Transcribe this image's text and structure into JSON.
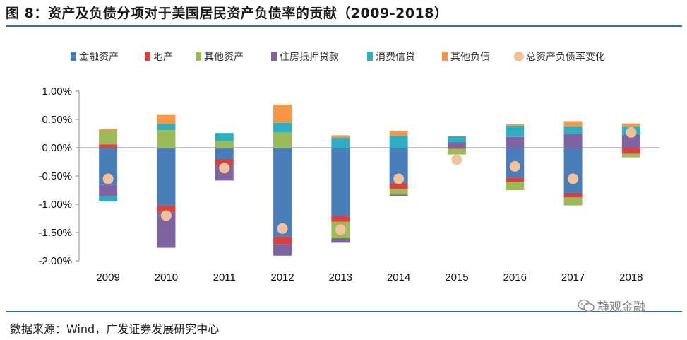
{
  "figure": {
    "title": "图 8：资产及负债分项对于美国居民资产负债率的贡献（2009-2018）",
    "source": "数据来源：Wind，广发证券发展研究中心",
    "watermark": "静观金融",
    "watermark_icon": "wechat-icon"
  },
  "chart_data": {
    "type": "bar",
    "stacked": true,
    "categories": [
      "2009",
      "2010",
      "2011",
      "2012",
      "2013",
      "2014",
      "2015",
      "2016",
      "2017",
      "2018"
    ],
    "ylim": [
      -0.02,
      0.01
    ],
    "yticks": [
      0.01,
      0.005,
      0.0,
      -0.005,
      -0.01,
      -0.015,
      -0.02
    ],
    "ytick_labels": [
      "1.00%",
      "0.50%",
      "0.00%",
      "-0.50%",
      "-1.00%",
      "-1.50%",
      "-2.00%"
    ],
    "legend_position": "top",
    "series": [
      {
        "name": "金融资产",
        "color": "#4a7ebb",
        "values": [
          -0.0066,
          -0.0102,
          -0.002,
          -0.0157,
          -0.0121,
          -0.0063,
          0.0,
          -0.0053,
          -0.008,
          0.0
        ]
      },
      {
        "name": "地产",
        "color": "#d9413f",
        "values": [
          0.0006,
          -0.0012,
          -0.001,
          -0.0014,
          -0.001,
          -0.001,
          -0.0002,
          -0.0007,
          -0.0008,
          -0.0011
        ]
      },
      {
        "name": "其他资产",
        "color": "#9bbb59",
        "values": [
          0.0024,
          0.0031,
          0.0012,
          0.0027,
          -0.0029,
          -0.001,
          -0.001,
          -0.0015,
          -0.0014,
          -0.0006
        ]
      },
      {
        "name": "住房抵押贷款",
        "color": "#8064a2",
        "values": [
          -0.0019,
          -0.0063,
          -0.0028,
          -0.002,
          -0.0008,
          -0.0002,
          0.001,
          0.0019,
          0.0024,
          0.0023
        ]
      },
      {
        "name": "消费信贷",
        "color": "#2eaec2",
        "values": [
          -0.001,
          0.0011,
          0.0014,
          0.0017,
          0.0018,
          0.0021,
          0.001,
          0.002,
          0.0014,
          0.0015
        ]
      },
      {
        "name": "其他负债",
        "color": "#f79646",
        "values": [
          0.0003,
          0.0017,
          0.0,
          0.0032,
          0.0004,
          0.0009,
          0.0,
          0.0003,
          0.0009,
          0.0005
        ]
      }
    ],
    "markers": {
      "name": "总资产负债率变化",
      "color": "#f4c29a",
      "values": [
        -0.0055,
        -0.012,
        -0.0036,
        -0.0143,
        -0.0145,
        -0.0055,
        -0.0021,
        -0.0033,
        -0.0055,
        0.0027
      ]
    }
  }
}
